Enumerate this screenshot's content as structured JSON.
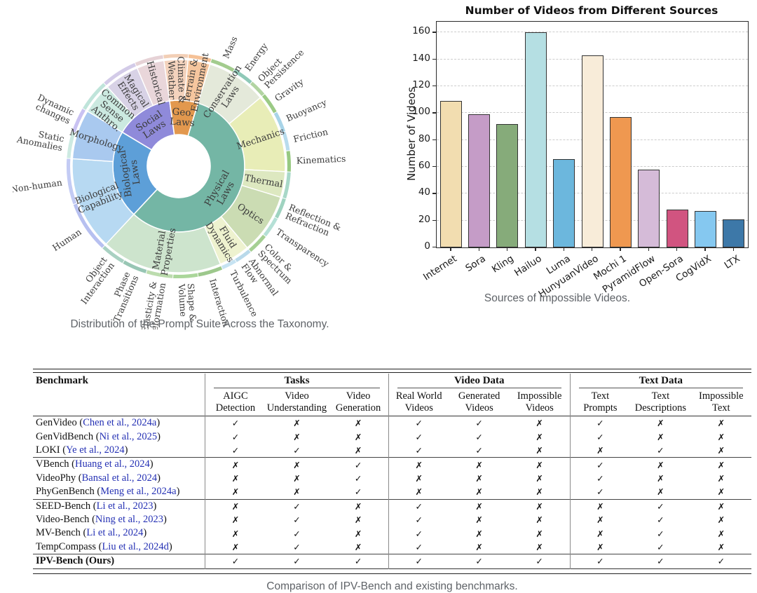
{
  "sunburst": {
    "caption": "Distribution of the Prompt Suite Across the Taxonomy.",
    "label_color": "#3b3b3b",
    "inner": [
      {
        "label": "Physical\nLaws",
        "start": 17,
        "end": 223,
        "color": "#74b6a5"
      },
      {
        "label": "Biological\nLaws",
        "start": 223,
        "end": 301,
        "color": "#5d9fd8"
      },
      {
        "label": "Social\nLaws",
        "start": 301,
        "end": 352,
        "color": "#8f8ada"
      },
      {
        "label": "Geo.\nLaws",
        "start": 352,
        "end": 377,
        "color": "#e2984e"
      }
    ],
    "middle": [
      {
        "label": "Conservation\nLaws",
        "start": 17,
        "end": 50,
        "color": "#e4e9da"
      },
      {
        "label": "Mechanics",
        "start": 50,
        "end": 93,
        "color": "#e8edb7"
      },
      {
        "label": "Thermal",
        "start": 93,
        "end": 107,
        "color": "#dde8c0"
      },
      {
        "label": "Optics",
        "start": 107,
        "end": 140,
        "color": "#cbdcb3"
      },
      {
        "label": "Fluid\nDynamics",
        "start": 140,
        "end": 157,
        "color": "#eef2cf"
      },
      {
        "label": "Material\nProperties",
        "start": 157,
        "end": 223,
        "color": "#cde4cd"
      },
      {
        "label": "Biological\nCapability",
        "start": 223,
        "end": 274,
        "color": "#b7d9f2"
      },
      {
        "label": "Morphology",
        "start": 274,
        "end": 301,
        "color": "#a9c9ef"
      },
      {
        "label": "Common\nSense\nAnthro.",
        "start": 301,
        "end": 318,
        "color": "#cbe9e0"
      },
      {
        "label": "Magical\nEffects",
        "start": 318,
        "end": 337,
        "color": "#d8d2e6"
      },
      {
        "label": "Historical",
        "start": 337,
        "end": 352,
        "color": "#e9d6da"
      },
      {
        "label": "Climate &\nWeather",
        "start": 352,
        "end": 365,
        "color": "#f4d3bd"
      },
      {
        "label": "Terrain &\nEnvironment",
        "start": 365,
        "end": 377,
        "color": "#f6c69e"
      }
    ],
    "leaves": [
      {
        "label": "Mass",
        "start": 17,
        "end": 30,
        "color": "#a3cc8e"
      },
      {
        "label": "Energy",
        "start": 30,
        "end": 41,
        "color": "#8fc9b8"
      },
      {
        "label": "Object\nPersistence",
        "start": 41,
        "end": 50,
        "color": "#b2d4a2"
      },
      {
        "label": "Gravity",
        "start": 50,
        "end": 61,
        "color": "#9bca85"
      },
      {
        "label": "Buoyancy",
        "start": 61,
        "end": 72,
        "color": "#a8d4e8"
      },
      {
        "label": "Friction",
        "start": 72,
        "end": 82,
        "color": "#b8dced"
      },
      {
        "label": "Kinematics",
        "start": 82,
        "end": 93,
        "color": "#97c981"
      },
      {
        "label": "",
        "start": 93,
        "end": 107,
        "color": "#a8d8c8"
      },
      {
        "label": "Reflection &\nRefraction",
        "start": 107,
        "end": 118,
        "color": "#9fd3c0"
      },
      {
        "label": "Transparency",
        "start": 118,
        "end": 129,
        "color": "#b5e0d6"
      },
      {
        "label": "Color &\nSpectrum",
        "start": 129,
        "end": 140,
        "color": "#a5cf93"
      },
      {
        "label": "Abnormal\nFlow",
        "start": 140,
        "end": 149,
        "color": "#b9d9ea"
      },
      {
        "label": "Turbulence",
        "start": 149,
        "end": 157,
        "color": "#c6e3f2"
      },
      {
        "label": "Interaction",
        "start": 157,
        "end": 170,
        "color": "#9dc88c"
      },
      {
        "label": "Shape &\nVolume",
        "start": 170,
        "end": 183,
        "color": "#aad69a"
      },
      {
        "label": "Elasticity &\nDeformation",
        "start": 183,
        "end": 197,
        "color": "#bcdcae"
      },
      {
        "label": "Phase\nTransitions",
        "start": 197,
        "end": 210,
        "color": "#98c6b4"
      },
      {
        "label": "Object\nInteraction",
        "start": 210,
        "end": 223,
        "color": "#a9d1c2"
      },
      {
        "label": "Human",
        "start": 223,
        "end": 250,
        "color": "#b7c0f0"
      },
      {
        "label": "Non-human",
        "start": 250,
        "end": 274,
        "color": "#c3cbf4"
      },
      {
        "label": "Static\nAnomalies",
        "start": 274,
        "end": 288,
        "color": "#cdeae2"
      },
      {
        "label": "Dynamic\nchanges",
        "start": 288,
        "end": 301,
        "color": "#c9c2f2"
      },
      {
        "label": "",
        "start": 301,
        "end": 318,
        "color": "#bfe4da"
      },
      {
        "label": "",
        "start": 318,
        "end": 337,
        "color": "#d3cbe8"
      },
      {
        "label": "",
        "start": 337,
        "end": 352,
        "color": "#e6d2d6"
      },
      {
        "label": "",
        "start": 352,
        "end": 365,
        "color": "#f2cfb6"
      },
      {
        "label": "",
        "start": 365,
        "end": 377,
        "color": "#f5c196"
      }
    ]
  },
  "chart_data": {
    "type": "bar",
    "title": "Number of Videos from Different Sources",
    "ylabel": "Number of Videos",
    "caption": "Sources of Impossible Videos.",
    "categories": [
      "Internet",
      "Sora",
      "Kling",
      "Hailuo",
      "Luma",
      "HunyuanVideo",
      "Mochi 1",
      "PyramidFlow",
      "Open-Sora",
      "CogVidX",
      "LTX"
    ],
    "values": [
      109,
      99,
      92,
      160,
      66,
      143,
      97,
      58,
      28,
      27,
      21
    ],
    "colors": [
      "#f2ddb0",
      "#c59cc7",
      "#86ab7a",
      "#b5dfe3",
      "#6cb7dd",
      "#f8ecd9",
      "#ef9850",
      "#d5bbd8",
      "#d15480",
      "#85c8f0",
      "#3d78a8"
    ],
    "yticks": [
      0,
      20,
      40,
      60,
      80,
      100,
      120,
      140,
      160
    ],
    "ylim": [
      0,
      168
    ],
    "grid": "dashed-horizontal",
    "bar_edge": "#333333",
    "legend": "none"
  },
  "table": {
    "caption": "Comparison of IPV-Bench and existing benchmarks.",
    "corner_header": "Benchmark",
    "check": "✓",
    "cross": "✗",
    "cite_color": "#2531b4",
    "groups": [
      {
        "label": "Tasks",
        "cols": [
          "AIGC\nDetection",
          "Video\nUnderstanding",
          "Video\nGeneration"
        ]
      },
      {
        "label": "Video Data",
        "cols": [
          "Real World\nVideos",
          "Generated\nVideos",
          "Impossible\nVideos"
        ]
      },
      {
        "label": "Text Data",
        "cols": [
          "Text\nPrompts",
          "Text\nDescriptions",
          "Impossible\nText"
        ]
      }
    ],
    "rows": [
      {
        "name": "GenVideo",
        "cite": "Chen et al., 2024a",
        "marks": [
          "y",
          "n",
          "n",
          "y",
          "y",
          "n",
          "y",
          "n",
          "n"
        ]
      },
      {
        "name": "GenVidBench",
        "cite": "Ni et al., 2025",
        "marks": [
          "y",
          "n",
          "n",
          "y",
          "y",
          "n",
          "y",
          "n",
          "n"
        ]
      },
      {
        "name": "LOKI",
        "cite": "Ye et al., 2024",
        "marks": [
          "y",
          "y",
          "n",
          "y",
          "y",
          "n",
          "n",
          "y",
          "n"
        ],
        "group_end": true
      },
      {
        "name": "VBench",
        "cite": "Huang et al., 2024",
        "marks": [
          "n",
          "n",
          "y",
          "n",
          "n",
          "n",
          "y",
          "n",
          "n"
        ]
      },
      {
        "name": "VideoPhy",
        "cite": "Bansal et al., 2024",
        "marks": [
          "n",
          "n",
          "y",
          "n",
          "n",
          "n",
          "y",
          "n",
          "n"
        ]
      },
      {
        "name": "PhyGenBench",
        "cite": "Meng et al., 2024a",
        "marks": [
          "n",
          "n",
          "y",
          "n",
          "n",
          "n",
          "y",
          "n",
          "n"
        ],
        "group_end": true
      },
      {
        "name": "SEED-Bench",
        "cite": "Li et al., 2023",
        "marks": [
          "n",
          "y",
          "n",
          "y",
          "n",
          "n",
          "n",
          "y",
          "n"
        ]
      },
      {
        "name": "Video-Bench",
        "cite": "Ning et al., 2023",
        "marks": [
          "n",
          "y",
          "n",
          "y",
          "n",
          "n",
          "n",
          "y",
          "n"
        ]
      },
      {
        "name": "MV-Bench",
        "cite": "Li et al., 2024",
        "marks": [
          "n",
          "y",
          "n",
          "y",
          "n",
          "n",
          "n",
          "y",
          "n"
        ]
      },
      {
        "name": "TempCompass",
        "cite": "Liu et al., 2024d",
        "marks": [
          "n",
          "y",
          "n",
          "y",
          "n",
          "n",
          "n",
          "y",
          "n"
        ],
        "group_end": true
      },
      {
        "name": "IPV-Bench (Ours)",
        "cite": null,
        "bold": true,
        "marks": [
          "y",
          "y",
          "y",
          "y",
          "y",
          "y",
          "y",
          "y",
          "y"
        ]
      }
    ]
  }
}
